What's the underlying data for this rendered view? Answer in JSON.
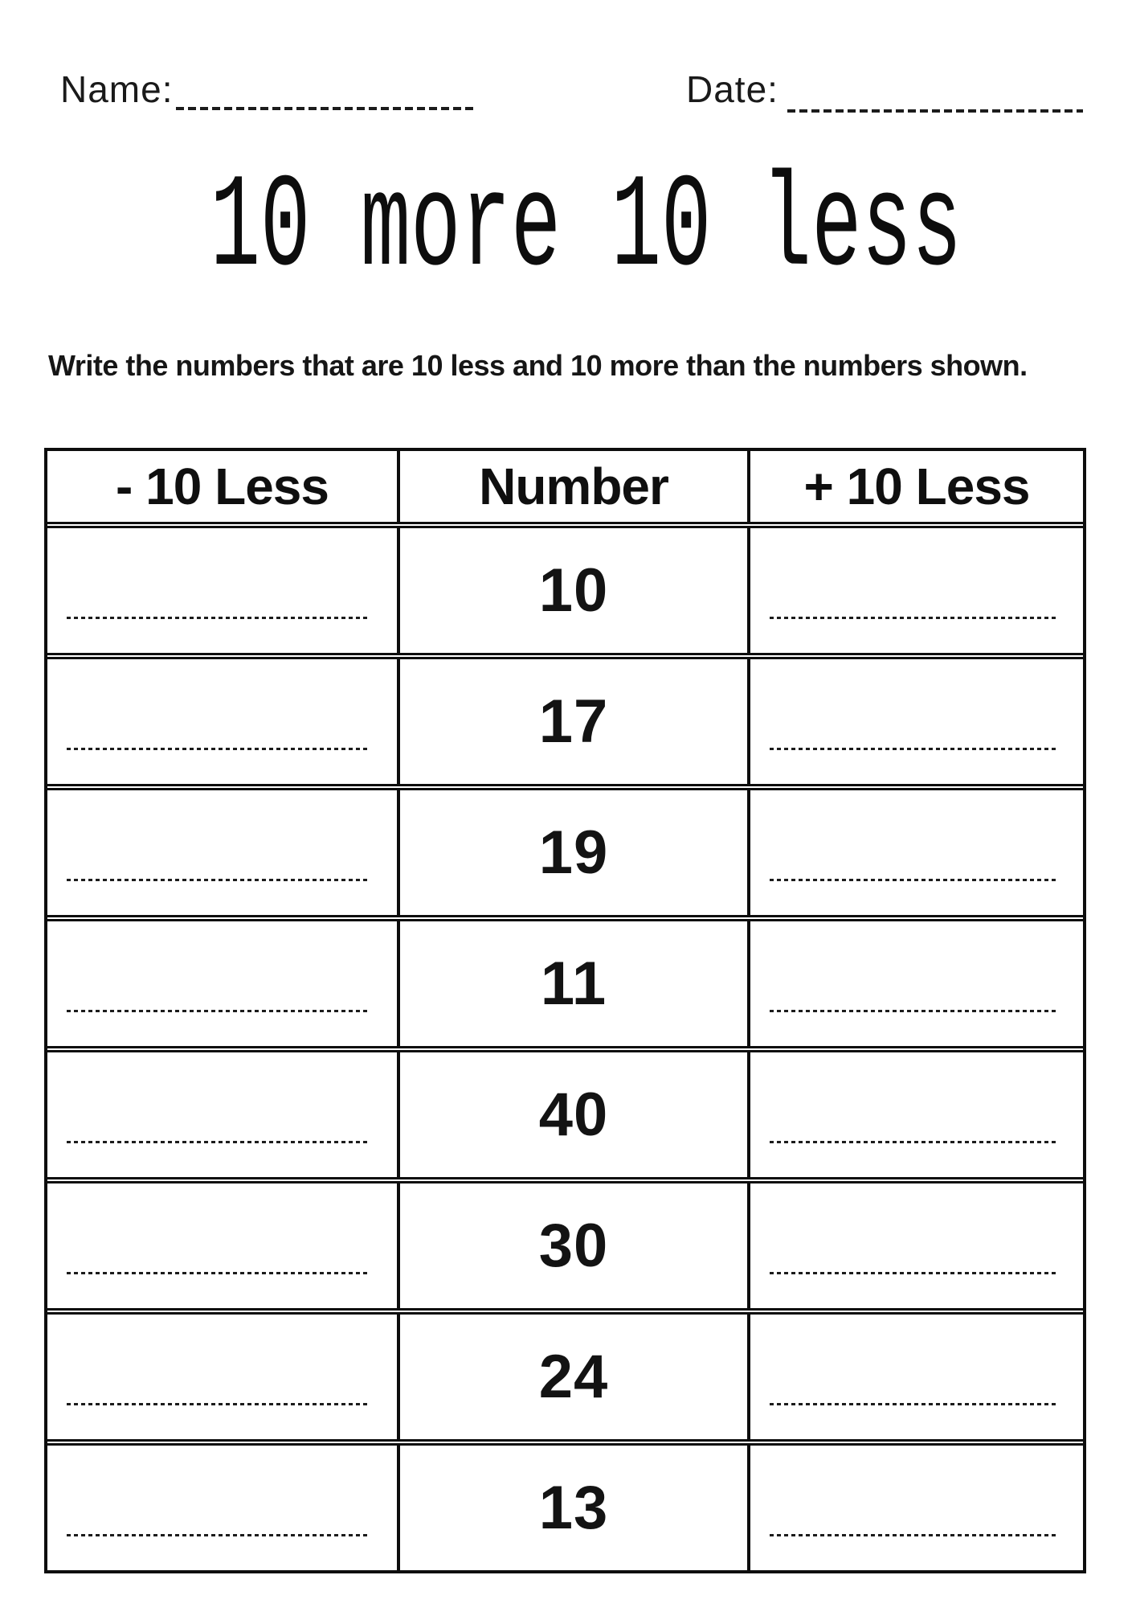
{
  "page": {
    "name_label": "Name:",
    "date_label": "Date:",
    "title": "10 more 10 less",
    "instruction": "Write the numbers that are 10 less and 10 more than the numbers shown."
  },
  "table": {
    "headers": [
      "- 10 Less",
      "Number",
      "+ 10 Less"
    ],
    "rows": [
      {
        "number": "10"
      },
      {
        "number": "17"
      },
      {
        "number": "19"
      },
      {
        "number": "11"
      },
      {
        "number": "40"
      },
      {
        "number": "30"
      },
      {
        "number": "24"
      },
      {
        "number": "13"
      }
    ]
  },
  "colors": {
    "ink": "#0d0d0d",
    "background": "#ffffff"
  }
}
